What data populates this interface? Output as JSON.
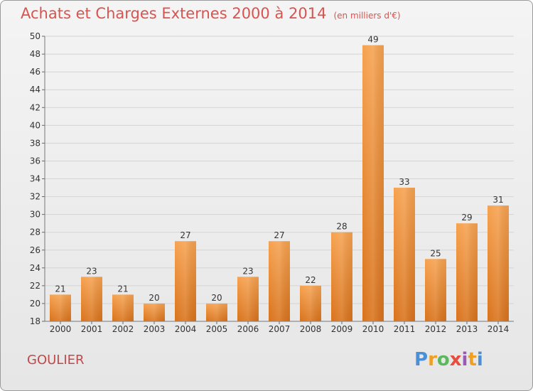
{
  "title": "Achats et Charges Externes 2000 à 2014",
  "subtitle": "(en milliers d'€)",
  "commune": "GOULIER",
  "logo": {
    "text": "Proxiti"
  },
  "colors": {
    "bar_top": "#f6a250",
    "bar_bottom": "#d9731c",
    "title": "#d9534f",
    "grid": "#d4d4d4"
  },
  "chart_data": {
    "type": "bar",
    "title": "Achats et Charges Externes 2000 à 2014",
    "subtitle": "(en milliers d'€)",
    "categories": [
      "2000",
      "2001",
      "2002",
      "2003",
      "2004",
      "2005",
      "2006",
      "2007",
      "2008",
      "2009",
      "2010",
      "2011",
      "2012",
      "2013",
      "2014"
    ],
    "values": [
      21,
      23,
      21,
      20,
      27,
      20,
      23,
      27,
      22,
      28,
      49,
      33,
      25,
      29,
      31
    ],
    "ylim": [
      18,
      50
    ],
    "yticks": [
      18,
      20,
      22,
      24,
      26,
      28,
      30,
      32,
      34,
      36,
      38,
      40,
      42,
      44,
      46,
      48,
      50
    ],
    "grid": true,
    "legend": "none"
  }
}
